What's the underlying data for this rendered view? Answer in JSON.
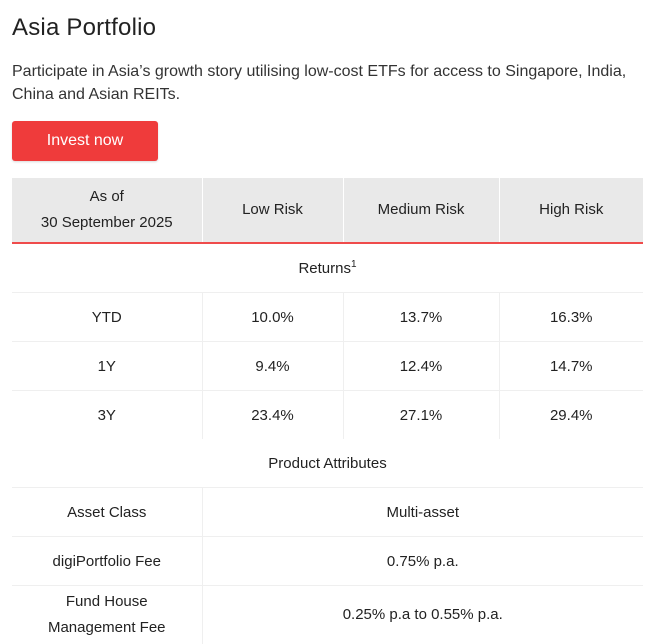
{
  "page": {
    "title": "Asia Portfolio",
    "description": "Participate in Asia’s growth story utilising low-cost ETFs for access to Singapore, India, China and Asian REITs.",
    "cta_label": "Invest now",
    "accent_color": "#ef3b3b"
  },
  "table": {
    "header": {
      "as_of_label": "As of",
      "as_of_date": "30 September 2025",
      "columns": [
        "Low Risk",
        "Medium Risk",
        "High Risk"
      ]
    },
    "returns_section": {
      "title": "Returns",
      "footnote": "1",
      "rows": [
        {
          "label": "YTD",
          "values": [
            "10.0%",
            "13.7%",
            "16.3%"
          ]
        },
        {
          "label": "1Y",
          "values": [
            "9.4%",
            "12.4%",
            "14.7%"
          ]
        },
        {
          "label": "3Y",
          "values": [
            "23.4%",
            "27.1%",
            "29.4%"
          ]
        }
      ]
    },
    "attributes_section": {
      "title": "Product Attributes",
      "rows": [
        {
          "label": "Asset Class",
          "value": "Multi-asset"
        },
        {
          "label": "digiPortfolio Fee",
          "value": "0.75% p.a."
        },
        {
          "label_line1": "Fund House",
          "label_line2": "Management Fee",
          "value": "0.25% p.a to 0.55% p.a."
        }
      ]
    }
  }
}
